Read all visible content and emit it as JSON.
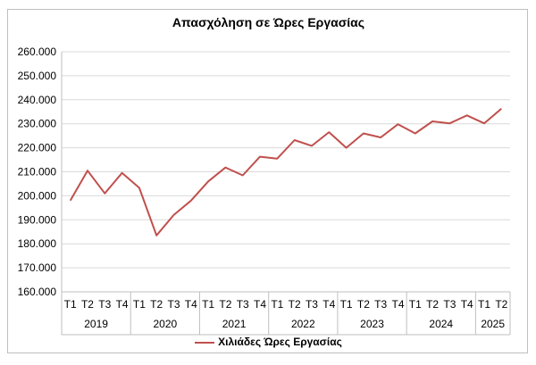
{
  "chart_data": {
    "type": "line",
    "title": "Απασχόληση σε Ώρες Εργασίας",
    "xlabel": "",
    "ylabel": "",
    "ylim": [
      160000,
      260000
    ],
    "yticks": [
      "160.000",
      "170.000",
      "180.000",
      "190.000",
      "200.000",
      "210.000",
      "220.000",
      "230.000",
      "240.000",
      "250.000",
      "260.000"
    ],
    "grid": true,
    "legend_position": "bottom",
    "categories": [
      "T1",
      "T2",
      "T3",
      "T4",
      "T1",
      "T2",
      "T3",
      "T4",
      "T1",
      "T2",
      "T3",
      "T4",
      "T1",
      "T2",
      "T3",
      "T4",
      "T1",
      "T2",
      "T3",
      "T4",
      "T1",
      "T2",
      "T3",
      "T4",
      "T1",
      "T2"
    ],
    "years": [
      {
        "label": "2019",
        "count": 4
      },
      {
        "label": "2020",
        "count": 4
      },
      {
        "label": "2021",
        "count": 4
      },
      {
        "label": "2022",
        "count": 4
      },
      {
        "label": "2023",
        "count": 4
      },
      {
        "label": "2024",
        "count": 4
      },
      {
        "label": "2025",
        "count": 2
      }
    ],
    "series": [
      {
        "name": "Χιλιάδες Ώρες Εργασίας",
        "color": "#c0504d",
        "values": [
          198000,
          210500,
          201000,
          209500,
          203300,
          183500,
          192000,
          198000,
          206000,
          211800,
          208500,
          216300,
          215500,
          223200,
          220800,
          226500,
          220000,
          226000,
          224300,
          229800,
          226000,
          231000,
          230200,
          233500,
          230200,
          236300
        ]
      }
    ]
  }
}
